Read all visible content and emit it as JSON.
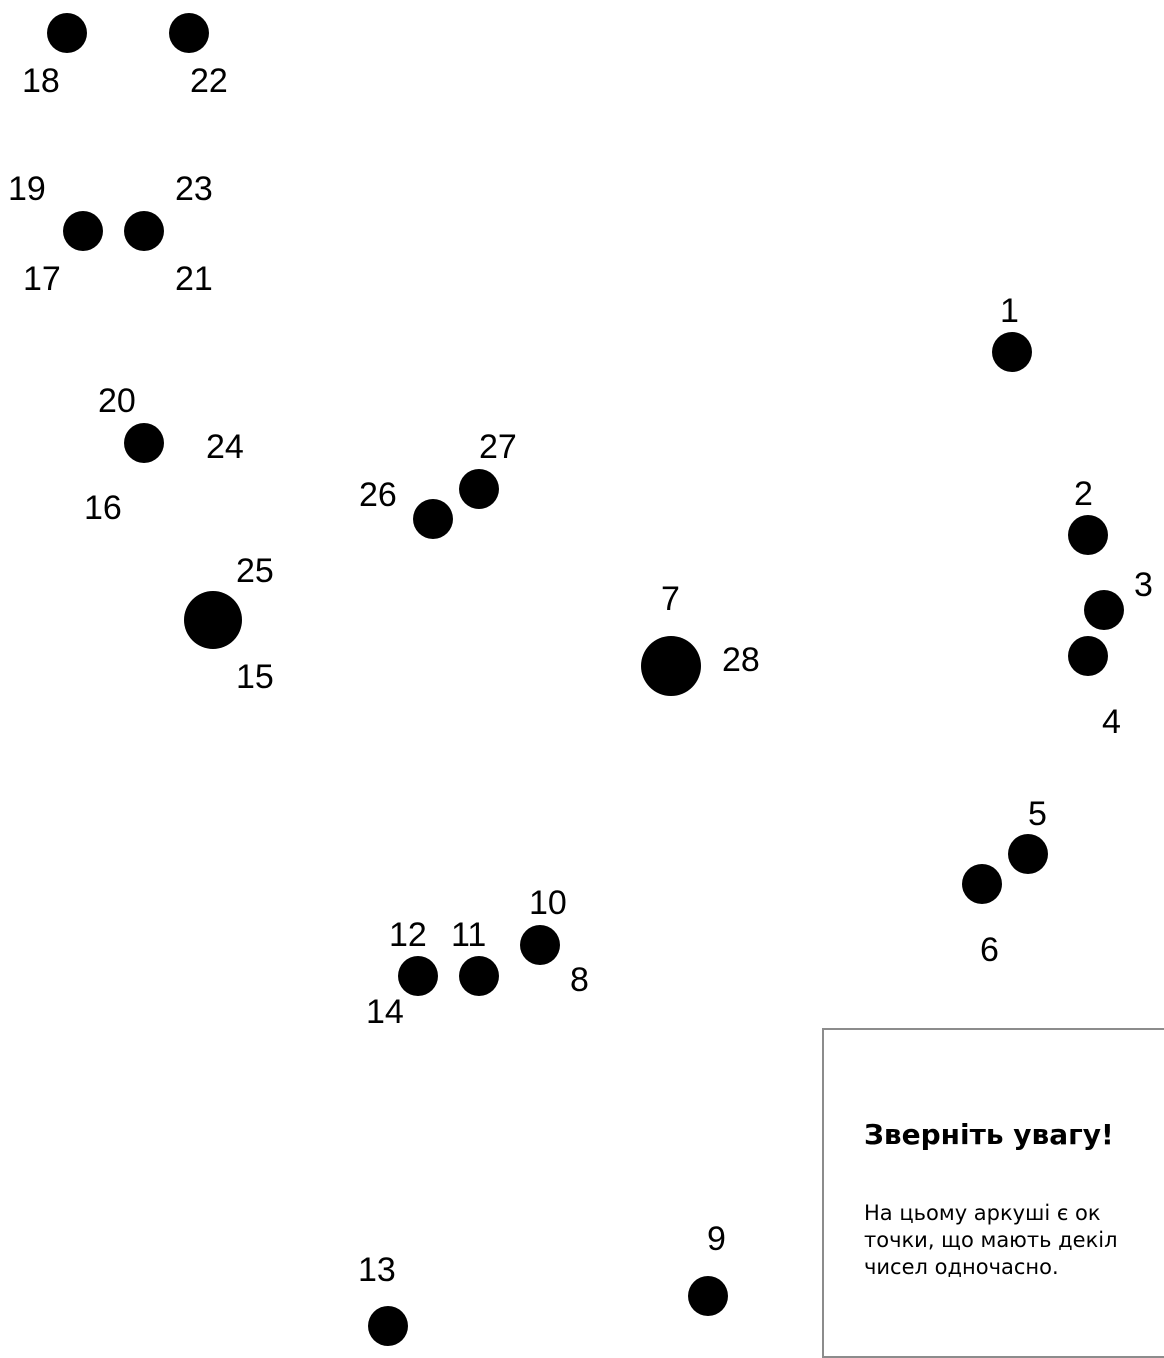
{
  "puzzle": {
    "points": [
      {
        "labels": [
          "18"
        ]
      },
      {
        "labels": [
          "22"
        ]
      },
      {
        "labels": [
          "19",
          "17"
        ]
      },
      {
        "labels": [
          "23",
          "21"
        ]
      },
      {
        "labels": [
          "20",
          "16",
          "24"
        ]
      },
      {
        "labels": [
          "25",
          "15"
        ]
      },
      {
        "labels": [
          "26"
        ]
      },
      {
        "labels": [
          "27"
        ]
      },
      {
        "labels": [
          "7",
          "28"
        ]
      },
      {
        "labels": [
          "1"
        ]
      },
      {
        "labels": [
          "2"
        ]
      },
      {
        "labels": [
          "3"
        ]
      },
      {
        "labels": [
          "4"
        ]
      },
      {
        "labels": [
          "5"
        ]
      },
      {
        "labels": [
          "6"
        ]
      },
      {
        "labels": [
          "12",
          "14"
        ]
      },
      {
        "labels": [
          "11"
        ]
      },
      {
        "labels": [
          "10",
          "8"
        ]
      },
      {
        "labels": [
          "13"
        ]
      },
      {
        "labels": [
          "9"
        ]
      }
    ]
  },
  "notice": {
    "title": "Зверніть увагу!",
    "body_lines": [
      "На цьому аркуші є ок",
      "точки, що мають декіл",
      "чисел одночасно."
    ]
  },
  "colors": {
    "dot": "#000000",
    "text": "#000000",
    "notice_border": "#8c8c8c",
    "background": "#ffffff"
  }
}
